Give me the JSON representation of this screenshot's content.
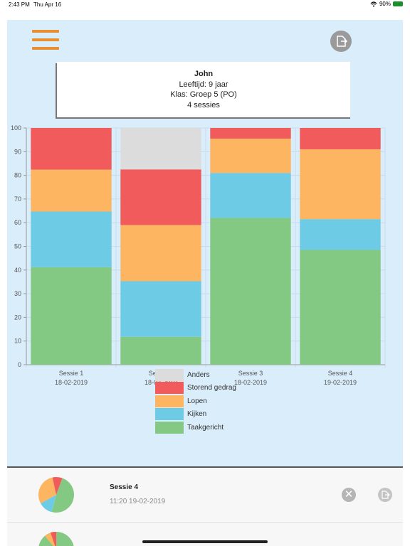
{
  "status": {
    "time": "2:43 PM",
    "date": "Thu Apr 16",
    "battery_pct": "90%"
  },
  "header": {
    "menu_icon": "hamburger-icon",
    "export_icon": "export-icon"
  },
  "student": {
    "name": "John",
    "age": "Leeftijd: 9 jaar",
    "klas": "Klas: Groep 5 (PO)",
    "sessions_count": "4 sessies"
  },
  "chart_data": {
    "type": "bar",
    "stacked": true,
    "categories": [
      "Sessie 1",
      "Sessie 2",
      "Sessie 3",
      "Sessie 4"
    ],
    "dates": [
      "18-02-2019",
      "18-02-2019",
      "18-02-2019",
      "19-02-2019"
    ],
    "ylim": [
      0,
      100
    ],
    "yticks": [
      0,
      10,
      20,
      30,
      40,
      50,
      60,
      70,
      80,
      90,
      100
    ],
    "grid": true,
    "legend_position": "bottom",
    "series": [
      {
        "name": "Taakgericht",
        "color": "#83c983",
        "values": [
          41.2,
          11.8,
          62,
          48.5
        ]
      },
      {
        "name": "Kijken",
        "color": "#6ecbe5",
        "values": [
          23.5,
          23.5,
          19,
          13
        ]
      },
      {
        "name": "Lopen",
        "color": "#fdb562",
        "values": [
          17.7,
          23.7,
          14.5,
          29.5
        ]
      },
      {
        "name": "Storend gedrag",
        "color": "#f25b5b",
        "values": [
          17.6,
          23.5,
          4.5,
          9
        ]
      },
      {
        "name": "Anders",
        "color": "#dcdcdc",
        "values": [
          0,
          17.5,
          0,
          0
        ]
      }
    ],
    "legend_order": [
      "Anders",
      "Storend gedrag",
      "Lopen",
      "Kijken",
      "Taakgericht"
    ]
  },
  "sessions": [
    {
      "title": "Sessie 4",
      "timestamp": "11:20 19-02-2019",
      "pie": [
        {
          "name": "Taakgericht",
          "value": 48.5,
          "color": "#83c983"
        },
        {
          "name": "Kijken",
          "value": 13,
          "color": "#6ecbe5"
        },
        {
          "name": "Lopen",
          "value": 29.5,
          "color": "#fdb562"
        },
        {
          "name": "Storend gedrag",
          "value": 9,
          "color": "#f25b5b"
        }
      ]
    }
  ]
}
